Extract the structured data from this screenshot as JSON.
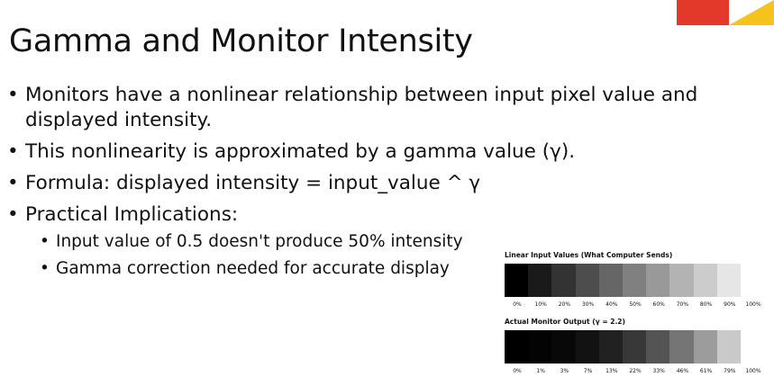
{
  "slide": {
    "title": "Gamma and Monitor Intensity",
    "bullets": [
      "Monitors have a nonlinear relationship between input pixel value and displayed intensity.",
      "This nonlinearity is approximated by a gamma value (γ).",
      "Formula: displayed intensity = input_value ^ γ",
      "Practical Implications:"
    ],
    "sub_bullets": [
      "Input value of 0.5 doesn't produce 50% intensity",
      "Gamma correction needed for accurate display"
    ]
  },
  "colors": {
    "red": "#e2392b",
    "yellow": "#f8c21c"
  },
  "figure": {
    "linear": {
      "title": "Linear Input Values (What Computer Sends)",
      "labels": [
        "0%",
        "10%",
        "20%",
        "30%",
        "40%",
        "50%",
        "60%",
        "70%",
        "80%",
        "90%",
        "100%"
      ],
      "levels": [
        0,
        10,
        20,
        30,
        40,
        50,
        60,
        70,
        80,
        90
      ]
    },
    "gamma": {
      "title": "Actual Monitor Output (γ = 2.2)",
      "labels": [
        "0%",
        "1%",
        "3%",
        "7%",
        "13%",
        "22%",
        "33%",
        "46%",
        "61%",
        "79%",
        "100%"
      ],
      "levels": [
        0,
        1,
        3,
        7,
        13,
        22,
        33,
        46,
        61,
        79
      ]
    }
  }
}
